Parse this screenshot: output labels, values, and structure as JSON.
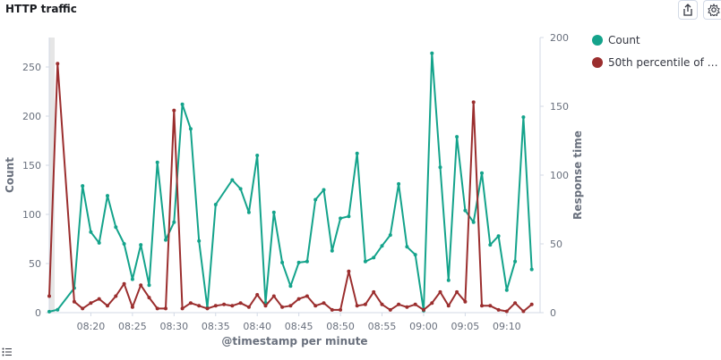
{
  "panel": {
    "title": "HTTP traffic"
  },
  "icons": {
    "share": "share-icon",
    "settings": "gear-icon",
    "legend_toggle": "list-icon"
  },
  "chart_data": {
    "type": "line",
    "x_label": "@timestamp per minute",
    "x_ticks": [
      "08:20",
      "08:25",
      "08:30",
      "08:35",
      "08:40",
      "08:45",
      "08:50",
      "08:55",
      "09:00",
      "09:05",
      "09:10"
    ],
    "x_start": "08:15",
    "x_end": "09:14",
    "y_left": {
      "label": "Count",
      "range": [
        0,
        280
      ],
      "ticks": [
        0,
        50,
        100,
        150,
        200,
        250
      ]
    },
    "y_right": {
      "label": "Response time",
      "range": [
        0,
        200
      ],
      "ticks": [
        0,
        50,
        100,
        150,
        200
      ]
    },
    "grid": false,
    "legend_position": "right",
    "series": [
      {
        "name": "Count",
        "axis": "left",
        "color": "#14a38b",
        "x": [
          "08:15",
          "08:16",
          "08:18",
          "08:19",
          "08:20",
          "08:21",
          "08:22",
          "08:23",
          "08:24",
          "08:25",
          "08:26",
          "08:27",
          "08:28",
          "08:29",
          "08:30",
          "08:31",
          "08:32",
          "08:33",
          "08:34",
          "08:35",
          "08:37",
          "08:38",
          "08:39",
          "08:40",
          "08:41",
          "08:42",
          "08:43",
          "08:44",
          "08:45",
          "08:46",
          "08:47",
          "08:48",
          "08:49",
          "08:50",
          "08:51",
          "08:52",
          "08:53",
          "08:54",
          "08:55",
          "08:56",
          "08:57",
          "08:58",
          "08:59",
          "09:00",
          "09:01",
          "09:02",
          "09:03",
          "09:04",
          "09:05",
          "09:06",
          "09:07",
          "09:08",
          "09:09",
          "09:10",
          "09:11",
          "09:12",
          "09:13"
        ],
        "y": [
          1,
          3,
          25,
          129,
          82,
          71,
          119,
          87,
          70,
          34,
          69,
          28,
          153,
          74,
          92,
          212,
          187,
          73,
          5,
          110,
          135,
          126,
          102,
          160,
          10,
          102,
          51,
          27,
          51,
          52,
          115,
          125,
          63,
          96,
          98,
          162,
          52,
          56,
          68,
          79,
          131,
          67,
          59,
          2,
          264,
          148,
          33,
          179,
          104,
          92,
          142,
          69,
          78,
          23,
          52,
          199,
          44
        ]
      },
      {
        "name": "50th percentile of R...",
        "axis": "right",
        "color": "#9b2e2e",
        "x": [
          "08:15",
          "08:16",
          "08:18",
          "08:19",
          "08:20",
          "08:21",
          "08:22",
          "08:23",
          "08:24",
          "08:25",
          "08:26",
          "08:27",
          "08:28",
          "08:29",
          "08:30",
          "08:31",
          "08:32",
          "08:33",
          "08:34",
          "08:35",
          "08:36",
          "08:37",
          "08:38",
          "08:39",
          "08:40",
          "08:41",
          "08:42",
          "08:43",
          "08:44",
          "08:45",
          "08:46",
          "08:47",
          "08:48",
          "08:49",
          "08:50",
          "08:51",
          "08:52",
          "08:53",
          "08:54",
          "08:55",
          "08:56",
          "08:57",
          "08:58",
          "08:59",
          "09:00",
          "09:01",
          "09:02",
          "09:03",
          "09:04",
          "09:05",
          "09:06",
          "09:07",
          "09:08",
          "09:09",
          "09:10",
          "09:11",
          "09:12",
          "09:13"
        ],
        "y": [
          12,
          181,
          8,
          3,
          7,
          10,
          5,
          12,
          21,
          4,
          20,
          11,
          3,
          3,
          147,
          3,
          7,
          5,
          3,
          5,
          6,
          5,
          7,
          4,
          13,
          5,
          12,
          4,
          5,
          10,
          12,
          5,
          7,
          2,
          2,
          30,
          5,
          6,
          15,
          6,
          2,
          6,
          4,
          6,
          2,
          7,
          15,
          5,
          15,
          8,
          153,
          5,
          5,
          2,
          1,
          7,
          1,
          6
        ]
      }
    ]
  }
}
